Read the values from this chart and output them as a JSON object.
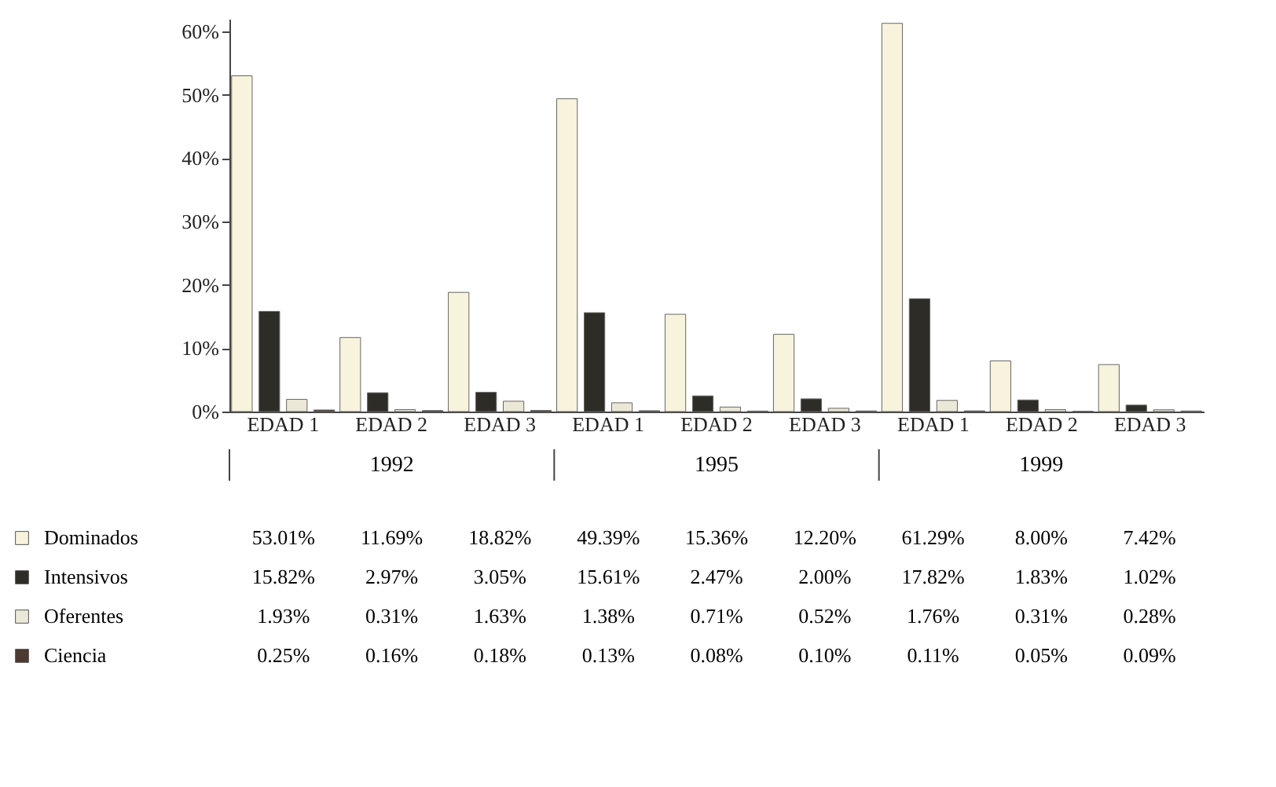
{
  "chart_data": {
    "type": "bar",
    "categories": [
      "EDAD 1",
      "EDAD 2",
      "EDAD 3",
      "EDAD 1",
      "EDAD 2",
      "EDAD 3",
      "EDAD 1",
      "EDAD 2",
      "EDAD 3"
    ],
    "annotations": [
      "1992",
      "1995",
      "1999"
    ],
    "series": [
      {
        "name": "Dominados",
        "color": "#f7f3dc",
        "values": [
          53.01,
          11.69,
          18.82,
          49.39,
          15.36,
          12.2,
          61.29,
          8.0,
          7.42
        ],
        "value_labels": [
          "53.01%",
          "11.69%",
          "18.82%",
          "49.39%",
          "15.36%",
          "12.20%",
          "61.29%",
          "8.00%",
          "7.42%"
        ]
      },
      {
        "name": "Intensivos",
        "color": "#2e2c26",
        "values": [
          15.82,
          2.97,
          3.05,
          15.61,
          2.47,
          2.0,
          17.82,
          1.83,
          1.02
        ],
        "value_labels": [
          "15.82%",
          "2.97%",
          "3.05%",
          "15.61%",
          "2.47%",
          "2.00%",
          "17.82%",
          "1.83%",
          "1.02%"
        ]
      },
      {
        "name": "Oferentes",
        "color": "#ece8d8",
        "values": [
          1.93,
          0.31,
          1.63,
          1.38,
          0.71,
          0.52,
          1.76,
          0.31,
          0.28
        ],
        "value_labels": [
          "1.93%",
          "0.31%",
          "1.63%",
          "1.38%",
          "0.71%",
          "0.52%",
          "1.76%",
          "0.31%",
          "0.28%"
        ]
      },
      {
        "name": "Ciencia",
        "color": "#4a3a30",
        "values": [
          0.25,
          0.16,
          0.18,
          0.13,
          0.08,
          0.1,
          0.11,
          0.05,
          0.09
        ],
        "value_labels": [
          "0.25%",
          "0.16%",
          "0.18%",
          "0.13%",
          "0.08%",
          "0.10%",
          "0.11%",
          "0.05%",
          "0.09%"
        ]
      }
    ],
    "ylim": [
      0,
      62
    ],
    "yticks": [
      {
        "value": 0,
        "label": "0%"
      },
      {
        "value": 10,
        "label": "10%"
      },
      {
        "value": 20,
        "label": "20%"
      },
      {
        "value": 30,
        "label": "30%"
      },
      {
        "value": 40,
        "label": "40%"
      },
      {
        "value": 50,
        "label": "50%"
      },
      {
        "value": 60,
        "label": "60%"
      }
    ],
    "grid": false,
    "legend": "bottom left"
  }
}
